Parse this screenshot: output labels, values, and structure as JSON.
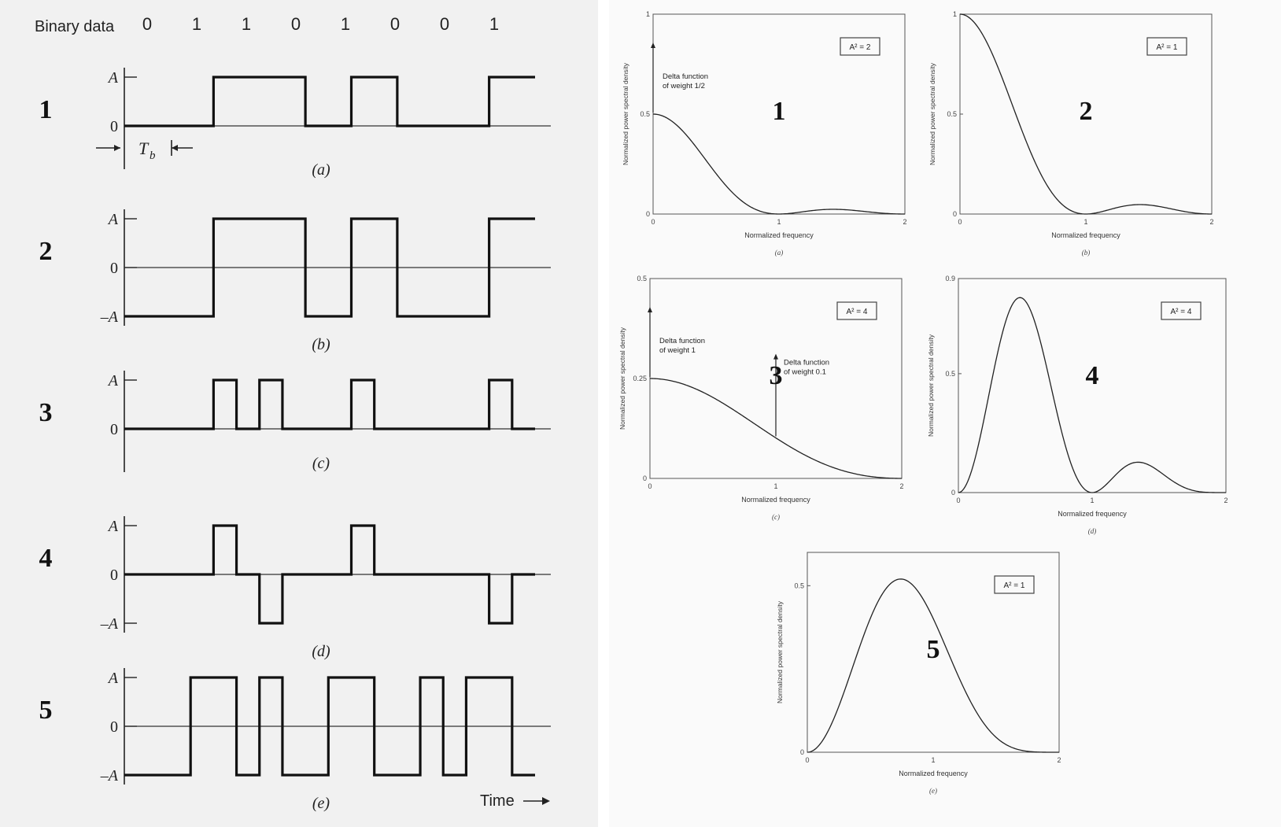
{
  "binary_row": {
    "label": "Binary data",
    "bits": [
      "0",
      "1",
      "1",
      "0",
      "1",
      "0",
      "0",
      "1"
    ]
  },
  "waveforms": [
    {
      "number": "1",
      "caption": "(a)",
      "levels": [
        "A",
        "0"
      ],
      "segments": [
        [
          0,
          0
        ],
        [
          1,
          1
        ],
        [
          1,
          1
        ],
        [
          0,
          0
        ],
        [
          1,
          1
        ],
        [
          0,
          0
        ],
        [
          0,
          0
        ],
        [
          1,
          1
        ]
      ],
      "tb_label": "T",
      "tb_sub": "b"
    },
    {
      "number": "2",
      "caption": "(b)",
      "levels": [
        "A",
        "0",
        "–A"
      ],
      "segments": [
        [
          -1,
          -1
        ],
        [
          1,
          1
        ],
        [
          1,
          1
        ],
        [
          -1,
          -1
        ],
        [
          1,
          1
        ],
        [
          -1,
          -1
        ],
        [
          -1,
          -1
        ],
        [
          1,
          1
        ]
      ]
    },
    {
      "number": "3",
      "caption": "(c)",
      "levels": [
        "A",
        "0"
      ],
      "segments": [
        [
          0,
          0
        ],
        [
          1,
          0
        ],
        [
          1,
          0
        ],
        [
          0,
          0
        ],
        [
          1,
          0
        ],
        [
          0,
          0
        ],
        [
          0,
          0
        ],
        [
          1,
          0
        ]
      ]
    },
    {
      "number": "4",
      "caption": "(d)",
      "levels": [
        "A",
        "0",
        "–A"
      ],
      "segments": [
        [
          0,
          0
        ],
        [
          1,
          0
        ],
        [
          -1,
          0
        ],
        [
          0,
          0
        ],
        [
          1,
          0
        ],
        [
          0,
          0
        ],
        [
          0,
          0
        ],
        [
          -1,
          0
        ]
      ]
    },
    {
      "number": "5",
      "caption": "(e)",
      "levels": [
        "A",
        "0",
        "–A"
      ],
      "segments": [
        [
          -1,
          1
        ],
        [
          1,
          -1
        ],
        [
          1,
          -1
        ],
        [
          -1,
          1
        ],
        [
          1,
          -1
        ],
        [
          -1,
          1
        ],
        [
          -1,
          1
        ],
        [
          1,
          -1
        ]
      ],
      "time_label": "Time"
    }
  ],
  "psd_plots": [
    {
      "number": "1",
      "caption": "(a)",
      "badge": "A² = 2",
      "ylim": [
        0,
        1
      ],
      "yticks": [
        "0",
        "0.5",
        "1"
      ],
      "xticks": [
        "0",
        "1",
        "2"
      ],
      "xlabel": "Normalized frequency",
      "ylabel": "Normalized power spectral density",
      "formula": "nrz_unipolar",
      "delta": {
        "text1": "Delta function",
        "text2": "of weight 1/2",
        "x": 0
      }
    },
    {
      "number": "2",
      "caption": "(b)",
      "badge": "A² = 1",
      "ylim": [
        0,
        1
      ],
      "yticks": [
        "0",
        "0.5",
        "1"
      ],
      "xticks": [
        "0",
        "1",
        "2"
      ],
      "xlabel": "Normalized frequency",
      "ylabel": "Normalized power spectral density",
      "formula": "nrz_polar"
    },
    {
      "number": "3",
      "caption": "(c)",
      "badge": "A² = 4",
      "ylim": [
        0,
        0.5
      ],
      "yticks": [
        "0",
        "0.25",
        "0.5"
      ],
      "xticks": [
        "0",
        "1",
        "2"
      ],
      "xlabel": "Normalized frequency",
      "ylabel": "Normalized power spectral density",
      "formula": "rz_unipolar",
      "delta": {
        "text1": "Delta function",
        "text2": "of weight 1",
        "x": 0
      },
      "delta2": {
        "text1": "Delta function",
        "text2": "of weight 0.1",
        "x": 1
      }
    },
    {
      "number": "4",
      "caption": "(d)",
      "badge": "A² = 4",
      "ylim": [
        0,
        0.9
      ],
      "yticks": [
        "0",
        "0.5",
        "0.9"
      ],
      "xticks": [
        "0",
        "1",
        "2"
      ],
      "xlabel": "Normalized frequency",
      "ylabel": "Normalized power spectral density",
      "formula": "rz_bipolar"
    },
    {
      "number": "5",
      "caption": "(e)",
      "badge": "A² = 1",
      "ylim": [
        0,
        0.6
      ],
      "yticks": [
        "0",
        "0.5"
      ],
      "xticks": [
        "0",
        "1",
        "2"
      ],
      "xlabel": "Normalized frequency",
      "ylabel": "Normalized power spectral density",
      "formula": "manchester"
    }
  ]
}
